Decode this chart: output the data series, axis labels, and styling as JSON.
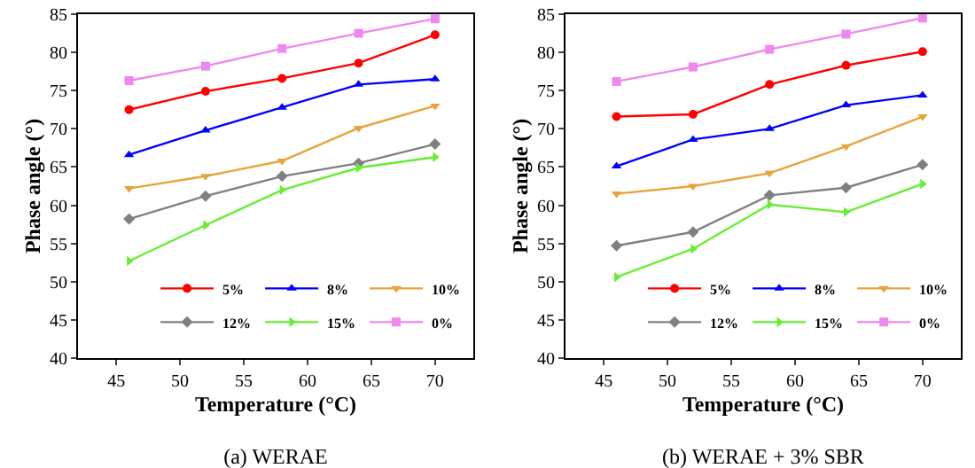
{
  "chart_data": [
    {
      "type": "line",
      "title": "(a) WERAE",
      "xlabel": "Temperature (°C)",
      "ylabel": "Phase angle (°)",
      "x": [
        46,
        52,
        58,
        64,
        70
      ],
      "xlim": [
        42,
        73
      ],
      "xticks": [
        45,
        50,
        55,
        60,
        65,
        70
      ],
      "ylim": [
        40,
        85
      ],
      "yticks": [
        40,
        45,
        50,
        55,
        60,
        65,
        70,
        75,
        80,
        85
      ],
      "grid": false,
      "legend": "bottom right",
      "series": [
        {
          "name": "5%",
          "color": "#ff0000",
          "marker": "circle",
          "values": [
            72.5,
            74.9,
            76.6,
            78.6,
            82.3
          ]
        },
        {
          "name": "8%",
          "color": "#0000ff",
          "marker": "triangle",
          "values": [
            66.6,
            69.8,
            72.8,
            75.8,
            76.5
          ]
        },
        {
          "name": "10%",
          "color": "#e8a33a",
          "marker": "triangle-down",
          "values": [
            62.2,
            63.8,
            65.8,
            70.1,
            73.0
          ]
        },
        {
          "name": "12%",
          "color": "#808080",
          "marker": "diamond",
          "values": [
            58.2,
            61.2,
            63.8,
            65.5,
            68.0
          ]
        },
        {
          "name": "15%",
          "color": "#66ee33",
          "marker": "triangle-right",
          "values": [
            52.7,
            57.4,
            62.0,
            64.9,
            66.3
          ]
        },
        {
          "name": "0%",
          "color": "#ee88ee",
          "marker": "square",
          "values": [
            76.3,
            78.2,
            80.5,
            82.5,
            84.4
          ]
        }
      ]
    },
    {
      "type": "line",
      "title": "(b) WERAE + 3% SBR",
      "xlabel": "Temperature (°C)",
      "ylabel": "Phase angle (°)",
      "x": [
        46,
        52,
        58,
        64,
        70
      ],
      "xlim": [
        42,
        73
      ],
      "xticks": [
        45,
        50,
        55,
        60,
        65,
        70
      ],
      "ylim": [
        40,
        85
      ],
      "yticks": [
        40,
        45,
        50,
        55,
        60,
        65,
        70,
        75,
        80,
        85
      ],
      "grid": false,
      "legend": "bottom right",
      "series": [
        {
          "name": "5%",
          "color": "#ff0000",
          "marker": "circle",
          "values": [
            71.6,
            71.9,
            75.8,
            78.3,
            80.1
          ]
        },
        {
          "name": "8%",
          "color": "#0000ff",
          "marker": "triangle",
          "values": [
            65.1,
            68.6,
            70.0,
            73.1,
            74.4
          ]
        },
        {
          "name": "10%",
          "color": "#e8a33a",
          "marker": "triangle-down",
          "values": [
            61.5,
            62.5,
            64.2,
            67.7,
            71.6
          ]
        },
        {
          "name": "12%",
          "color": "#808080",
          "marker": "diamond",
          "values": [
            54.7,
            56.5,
            61.3,
            62.3,
            65.3
          ]
        },
        {
          "name": "15%",
          "color": "#66ee33",
          "marker": "triangle-right",
          "values": [
            50.6,
            54.3,
            60.1,
            59.1,
            62.8
          ]
        },
        {
          "name": "0%",
          "color": "#ee88ee",
          "marker": "square",
          "values": [
            76.2,
            78.1,
            80.4,
            82.4,
            84.5
          ]
        }
      ]
    }
  ]
}
